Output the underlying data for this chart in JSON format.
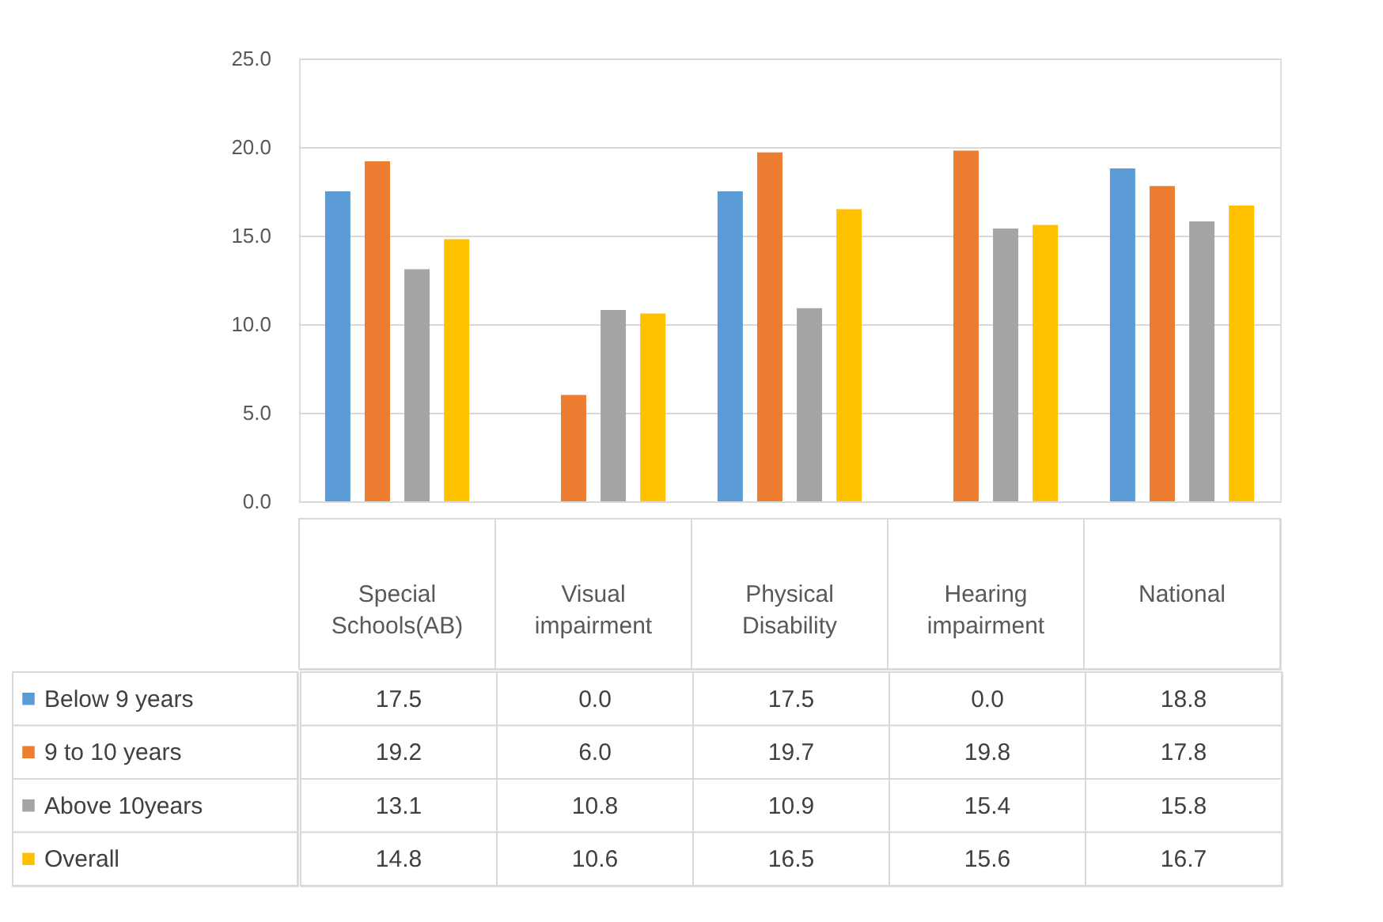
{
  "chart_data": {
    "type": "bar",
    "categories": [
      "Special Schools(AB)",
      "Visual impairment",
      "Physical Disability",
      "Hearing impairment",
      "National"
    ],
    "series": [
      {
        "name": "Below 9 years",
        "color": "#5b9bd5",
        "values": [
          17.5,
          0.0,
          17.5,
          0.0,
          18.8
        ],
        "value_labels": [
          "17.5",
          "0.0",
          "17.5",
          "0.0",
          "18.8"
        ]
      },
      {
        "name": "9 to 10 years",
        "color": "#ed7d31",
        "values": [
          19.2,
          6.0,
          19.7,
          19.8,
          17.8
        ],
        "value_labels": [
          "19.2",
          "6.0",
          "19.7",
          "19.8",
          "17.8"
        ]
      },
      {
        "name": "Above 10years",
        "color": "#a5a5a5",
        "values": [
          13.1,
          10.8,
          10.9,
          15.4,
          15.8
        ],
        "value_labels": [
          "13.1",
          "10.8",
          "10.9",
          "15.4",
          "15.8"
        ]
      },
      {
        "name": "Overall",
        "color": "#ffc000",
        "values": [
          14.8,
          10.6,
          16.5,
          15.6,
          16.7
        ],
        "value_labels": [
          "14.8",
          "10.6",
          "16.5",
          "15.6",
          "16.7"
        ]
      }
    ],
    "ylim": [
      0,
      25
    ],
    "yticks": [
      {
        "value": 0,
        "label": "0.0"
      },
      {
        "value": 5,
        "label": "5.0"
      },
      {
        "value": 10,
        "label": "10.0"
      },
      {
        "value": 15,
        "label": "15.0"
      },
      {
        "value": 20,
        "label": "20.0"
      },
      {
        "value": 25,
        "label": "25.0"
      }
    ],
    "grid": "y",
    "legend": "bottom"
  }
}
